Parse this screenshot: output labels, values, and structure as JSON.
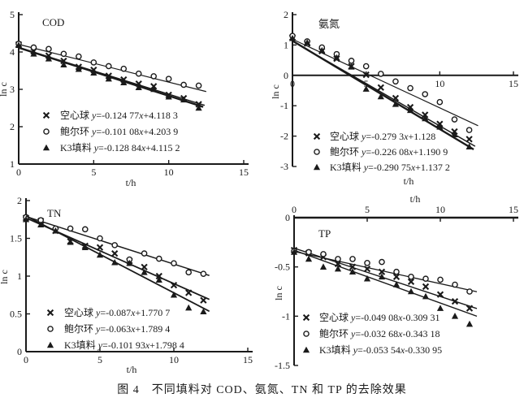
{
  "caption": "图 4　不同填料对 COD、氨氮、TN 和 TP 的去除效果",
  "colors": {
    "ink": "#1a1a1a",
    "background": "#ffffff"
  },
  "chart_data": [
    {
      "type": "scatter",
      "title": "COD",
      "xlabel": "t/h",
      "ylabel": "ln c",
      "xlim": [
        0,
        15
      ],
      "ylim": [
        1,
        5
      ],
      "xticks": [
        0,
        5,
        10,
        15
      ],
      "yticks": [
        1,
        2,
        3,
        4,
        5
      ],
      "x_axis_at": "bottom",
      "grid": false,
      "legend_position": "inside-lower-left",
      "series": [
        {
          "name": "空心球",
          "marker": "x",
          "equation": "y=-0.124 77x+4.118 3",
          "fit": {
            "slope": -0.12477,
            "intercept": 4.1183
          },
          "line_x": [
            0,
            12.4
          ],
          "line_width": 1.4,
          "x": [
            0,
            1,
            2,
            3,
            4,
            5,
            6,
            7,
            8,
            9,
            10,
            11,
            12
          ],
          "y": [
            4.2,
            4.02,
            3.9,
            3.76,
            3.6,
            3.52,
            3.36,
            3.26,
            3.15,
            3.08,
            2.85,
            2.76,
            2.6
          ]
        },
        {
          "name": "鲍尔环",
          "marker": "circle",
          "equation": "y=-0.101 08x+4.203 9",
          "fit": {
            "slope": -0.10108,
            "intercept": 4.2039
          },
          "line_x": [
            0,
            12.5
          ],
          "line_width": 1.2,
          "x": [
            0,
            1,
            2,
            3,
            4,
            5,
            6,
            7,
            8,
            9,
            10,
            11,
            12
          ],
          "y": [
            4.22,
            4.12,
            4.08,
            3.95,
            3.88,
            3.72,
            3.62,
            3.55,
            3.42,
            3.35,
            3.28,
            3.12,
            3.1
          ]
        },
        {
          "name": "K3填料",
          "marker": "triangle",
          "equation": "y=-0.128 84x+4.115 2",
          "fit": {
            "slope": -0.12884,
            "intercept": 4.1152
          },
          "line_x": [
            0,
            12.3
          ],
          "line_width": 2.4,
          "x": [
            0,
            1,
            2,
            3,
            4,
            5,
            6,
            7,
            8,
            9,
            10,
            11,
            12
          ],
          "y": [
            4.18,
            3.95,
            3.82,
            3.66,
            3.54,
            3.44,
            3.28,
            3.18,
            3.05,
            3.0,
            2.8,
            2.72,
            2.5
          ]
        }
      ]
    },
    {
      "type": "scatter",
      "title": "氨氮",
      "xlabel": "t/h",
      "ylabel": "ln c",
      "xlim": [
        0,
        15
      ],
      "ylim": [
        -3,
        2
      ],
      "xticks": [
        0,
        5,
        10,
        15
      ],
      "yticks": [
        -3,
        -2,
        -1,
        0,
        1,
        2
      ],
      "x_axis_at": "zero",
      "grid": false,
      "legend_position": "inside-lower-left",
      "series": [
        {
          "name": "空心球",
          "marker": "x",
          "equation": "y=-0.279 3x+1.128",
          "fit": {
            "slope": -0.2793,
            "intercept": 1.128
          },
          "line_x": [
            0,
            12.4
          ],
          "line_width": 1.5,
          "x": [
            0,
            1,
            2,
            3,
            4,
            5,
            6,
            7,
            8,
            9,
            10,
            11,
            12
          ],
          "y": [
            1.25,
            1.05,
            0.8,
            0.55,
            0.3,
            0.02,
            -0.4,
            -0.75,
            -1.05,
            -1.3,
            -1.6,
            -1.85,
            -2.1
          ]
        },
        {
          "name": "鲍尔环",
          "marker": "circle",
          "equation": "y=-0.226 08x+1.190 9",
          "fit": {
            "slope": -0.22608,
            "intercept": 1.1909
          },
          "line_x": [
            0,
            12.6
          ],
          "line_width": 1.2,
          "x": [
            0,
            1,
            2,
            3,
            4,
            5,
            6,
            7,
            8,
            9,
            10,
            11,
            12
          ],
          "y": [
            1.3,
            1.12,
            0.92,
            0.7,
            0.48,
            0.3,
            0.05,
            -0.2,
            -0.42,
            -0.62,
            -0.88,
            -1.45,
            -1.8
          ]
        },
        {
          "name": "K3填料",
          "marker": "triangle",
          "equation": "y=-0.290 75x+1.137 2",
          "fit": {
            "slope": -0.29075,
            "intercept": 1.1372
          },
          "line_x": [
            0,
            12.3
          ],
          "line_width": 2.4,
          "x": [
            0,
            1,
            2,
            3,
            4,
            5,
            6,
            7,
            8,
            9,
            10,
            11,
            12
          ],
          "y": [
            1.22,
            1.08,
            0.82,
            0.58,
            0.28,
            -0.45,
            -0.7,
            -0.95,
            -1.15,
            -1.42,
            -1.7,
            -1.95,
            -2.35
          ]
        }
      ]
    },
    {
      "type": "scatter",
      "title": "TN",
      "xlabel": "t/h",
      "ylabel": "ln c",
      "xlim": [
        0,
        15
      ],
      "ylim": [
        0,
        2
      ],
      "xticks": [
        0,
        5,
        10,
        15
      ],
      "yticks": [
        0,
        0.5,
        1,
        1.5,
        2
      ],
      "x_axis_at": "bottom",
      "grid": false,
      "legend_position": "inside-lower-left",
      "series": [
        {
          "name": "空心球",
          "marker": "x",
          "equation": "y=-0.087x+1.770 7",
          "fit": {
            "slope": -0.087,
            "intercept": 1.7707
          },
          "line_x": [
            0,
            12.4
          ],
          "line_width": 1.8,
          "x": [
            0,
            1,
            2,
            3,
            4,
            5,
            6,
            7,
            8,
            9,
            10,
            11,
            12
          ],
          "y": [
            1.77,
            1.73,
            1.6,
            1.46,
            1.4,
            1.38,
            1.3,
            1.2,
            1.12,
            1.0,
            0.88,
            0.78,
            0.68
          ]
        },
        {
          "name": "鲍尔环",
          "marker": "circle",
          "equation": "y=-0.063x+1.789 4",
          "fit": {
            "slope": -0.063,
            "intercept": 1.7894
          },
          "line_x": [
            0,
            12.4
          ],
          "line_width": 1.5,
          "x": [
            0,
            1,
            2,
            3,
            4,
            5,
            6,
            7,
            8,
            9,
            10,
            11,
            12
          ],
          "y": [
            1.78,
            1.74,
            1.63,
            1.63,
            1.62,
            1.5,
            1.41,
            1.22,
            1.3,
            1.23,
            1.17,
            1.05,
            1.03
          ]
        },
        {
          "name": "K3填料",
          "marker": "triangle",
          "equation": "y=-0.101 93x+1.798 4",
          "fit": {
            "slope": -0.10193,
            "intercept": 1.7984
          },
          "line_x": [
            0,
            12.4
          ],
          "line_width": 1.8,
          "x": [
            0,
            1,
            2,
            3,
            4,
            5,
            6,
            7,
            8,
            9,
            10,
            11,
            12
          ],
          "y": [
            1.75,
            1.68,
            1.6,
            1.45,
            1.38,
            1.28,
            1.18,
            1.17,
            1.05,
            0.95,
            0.75,
            0.58,
            0.53
          ]
        }
      ]
    },
    {
      "type": "scatter",
      "title": "TP",
      "xlabel": "t/h",
      "ylabel": "ln c",
      "xlim": [
        0,
        15
      ],
      "ylim": [
        -1.5,
        0
      ],
      "xticks": [
        0,
        5,
        10,
        15
      ],
      "yticks": [
        0,
        -0.5,
        -1,
        -1.5
      ],
      "x_axis_at": "top",
      "grid": false,
      "legend_position": "inside-lower-left",
      "series": [
        {
          "name": "空心球",
          "marker": "x",
          "equation": "y=-0.049 08x-0.309 31",
          "fit": {
            "slope": -0.04908,
            "intercept": -0.30931
          },
          "line_x": [
            0,
            12.5
          ],
          "line_width": 1.4,
          "x": [
            0,
            1,
            2,
            3,
            4,
            5,
            6,
            7,
            8,
            9,
            10,
            11,
            12
          ],
          "y": [
            -0.33,
            -0.36,
            -0.4,
            -0.47,
            -0.5,
            -0.52,
            -0.55,
            -0.6,
            -0.65,
            -0.7,
            -0.78,
            -0.85,
            -0.92
          ]
        },
        {
          "name": "鲍尔环",
          "marker": "circle",
          "equation": "y=-0.032 68x-0.343 18",
          "fit": {
            "slope": -0.03268,
            "intercept": -0.34318
          },
          "line_x": [
            0,
            12.5
          ],
          "line_width": 1.3,
          "x": [
            0,
            1,
            2,
            3,
            4,
            5,
            6,
            7,
            8,
            9,
            10,
            11,
            12
          ],
          "y": [
            -0.34,
            -0.35,
            -0.37,
            -0.42,
            -0.42,
            -0.46,
            -0.45,
            -0.55,
            -0.6,
            -0.62,
            -0.63,
            -0.68,
            -0.75
          ]
        },
        {
          "name": "K3填料",
          "marker": "triangle",
          "equation": "y=-0.053 54x-0.330 95",
          "fit": {
            "slope": -0.05354,
            "intercept": -0.33095
          },
          "line_x": [
            0,
            12.5
          ],
          "line_width": 1.4,
          "x": [
            0,
            1,
            2,
            3,
            4,
            5,
            6,
            7,
            8,
            9,
            10,
            11,
            12
          ],
          "y": [
            -0.35,
            -0.42,
            -0.5,
            -0.52,
            -0.55,
            -0.62,
            -0.6,
            -0.68,
            -0.75,
            -0.8,
            -0.92,
            -1.0,
            -1.08
          ]
        }
      ]
    }
  ]
}
